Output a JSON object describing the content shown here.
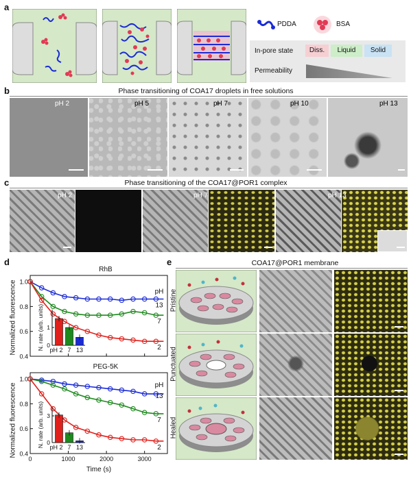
{
  "panel_labels": {
    "a": "a",
    "b": "b",
    "c": "c",
    "d": "d",
    "e": "e"
  },
  "panel_a": {
    "legend": {
      "pdda": "PDDA",
      "bsa": "BSA"
    },
    "state_label": "In-pore state",
    "states": [
      "Diss.",
      "Liquid",
      "Solid"
    ],
    "state_colors": [
      "#f6cfd3",
      "#cdeec8",
      "#c9e2f4"
    ],
    "permeability_label": "Permeability"
  },
  "panel_b": {
    "title": "Phase transitioning of COA17 droplets in free solutions",
    "ph": [
      "pH 2",
      "pH 5",
      "pH 7",
      "pH 10",
      "pH 13"
    ]
  },
  "panel_c": {
    "title": "Phase transitioning of the COA17@POR1 complex",
    "ph": [
      "pH 2",
      "pH 7",
      "pH 13"
    ]
  },
  "panel_d": {
    "y_label": "Normalized fluorescence",
    "x_label": "Time (s)",
    "series_colors": [
      "#1a2bd6",
      "#1e8a1e",
      "#e0201b"
    ],
    "pH_header": "pH",
    "top": {
      "title": "RhB",
      "y_ticks": [
        "1.0",
        "0.8",
        "0.6",
        "0.4"
      ],
      "series_labels": [
        "13",
        "7",
        "2"
      ],
      "inset": {
        "ylabel": "N. rate (arb. units)",
        "categories": [
          "pH 2",
          "7",
          "13"
        ],
        "values": [
          1.5,
          1.0,
          0.45
        ],
        "yticks": [
          "0",
          "1"
        ],
        "ylim": [
          0,
          2
        ]
      }
    },
    "bottom": {
      "title": "PEG-5K",
      "y_ticks": [
        "1.0",
        "0.8",
        "0.6",
        "0.4"
      ],
      "x_ticks": [
        "0",
        "1000",
        "2000",
        "3000"
      ],
      "series_labels": [
        "13",
        "7",
        "2"
      ],
      "inset": {
        "ylabel": "N. rate (arb. units)",
        "categories": [
          "pH 2",
          "7",
          "13"
        ],
        "values": [
          3.1,
          1.1,
          0.2
        ],
        "yticks": [
          "0",
          "3"
        ],
        "ylim": [
          0,
          4
        ]
      }
    }
  },
  "panel_e": {
    "title": "COA17@POR1 membrane",
    "rows": [
      "Pristine",
      "Punctuated",
      "Healed"
    ]
  },
  "chart_data": [
    {
      "type": "scatter",
      "title": "RhB",
      "xlabel": "Time (s)",
      "ylabel": "Normalized fluorescence",
      "xlim": [
        0,
        3600
      ],
      "ylim": [
        0.4,
        1.05
      ],
      "x": [
        0,
        300,
        600,
        900,
        1200,
        1500,
        1800,
        2100,
        2400,
        2700,
        3000,
        3300
      ],
      "series": [
        {
          "name": "13",
          "values": [
            1.0,
            0.95,
            0.91,
            0.88,
            0.87,
            0.86,
            0.86,
            0.86,
            0.85,
            0.86,
            0.86,
            0.86
          ]
        },
        {
          "name": "7",
          "values": [
            1.0,
            0.88,
            0.8,
            0.76,
            0.74,
            0.73,
            0.73,
            0.73,
            0.74,
            0.76,
            0.75,
            0.73
          ]
        },
        {
          "name": "2",
          "values": [
            1.0,
            0.85,
            0.74,
            0.68,
            0.63,
            0.6,
            0.57,
            0.55,
            0.54,
            0.53,
            0.52,
            0.52
          ]
        }
      ]
    },
    {
      "type": "scatter",
      "title": "PEG-5K",
      "xlabel": "Time (s)",
      "ylabel": "Normalized fluorescence",
      "xlim": [
        0,
        3600
      ],
      "ylim": [
        0.4,
        1.05
      ],
      "x": [
        0,
        300,
        600,
        900,
        1200,
        1500,
        1800,
        2100,
        2400,
        2700,
        3000,
        3300
      ],
      "series": [
        {
          "name": "13",
          "values": [
            1.0,
            0.99,
            0.98,
            0.96,
            0.95,
            0.94,
            0.93,
            0.92,
            0.91,
            0.9,
            0.88,
            0.88
          ]
        },
        {
          "name": "7",
          "values": [
            1.0,
            0.98,
            0.95,
            0.92,
            0.88,
            0.85,
            0.83,
            0.81,
            0.79,
            0.76,
            0.73,
            0.72
          ]
        },
        {
          "name": "2",
          "values": [
            1.0,
            0.88,
            0.76,
            0.67,
            0.61,
            0.58,
            0.55,
            0.53,
            0.52,
            0.51,
            0.51,
            0.5
          ]
        }
      ]
    }
  ]
}
